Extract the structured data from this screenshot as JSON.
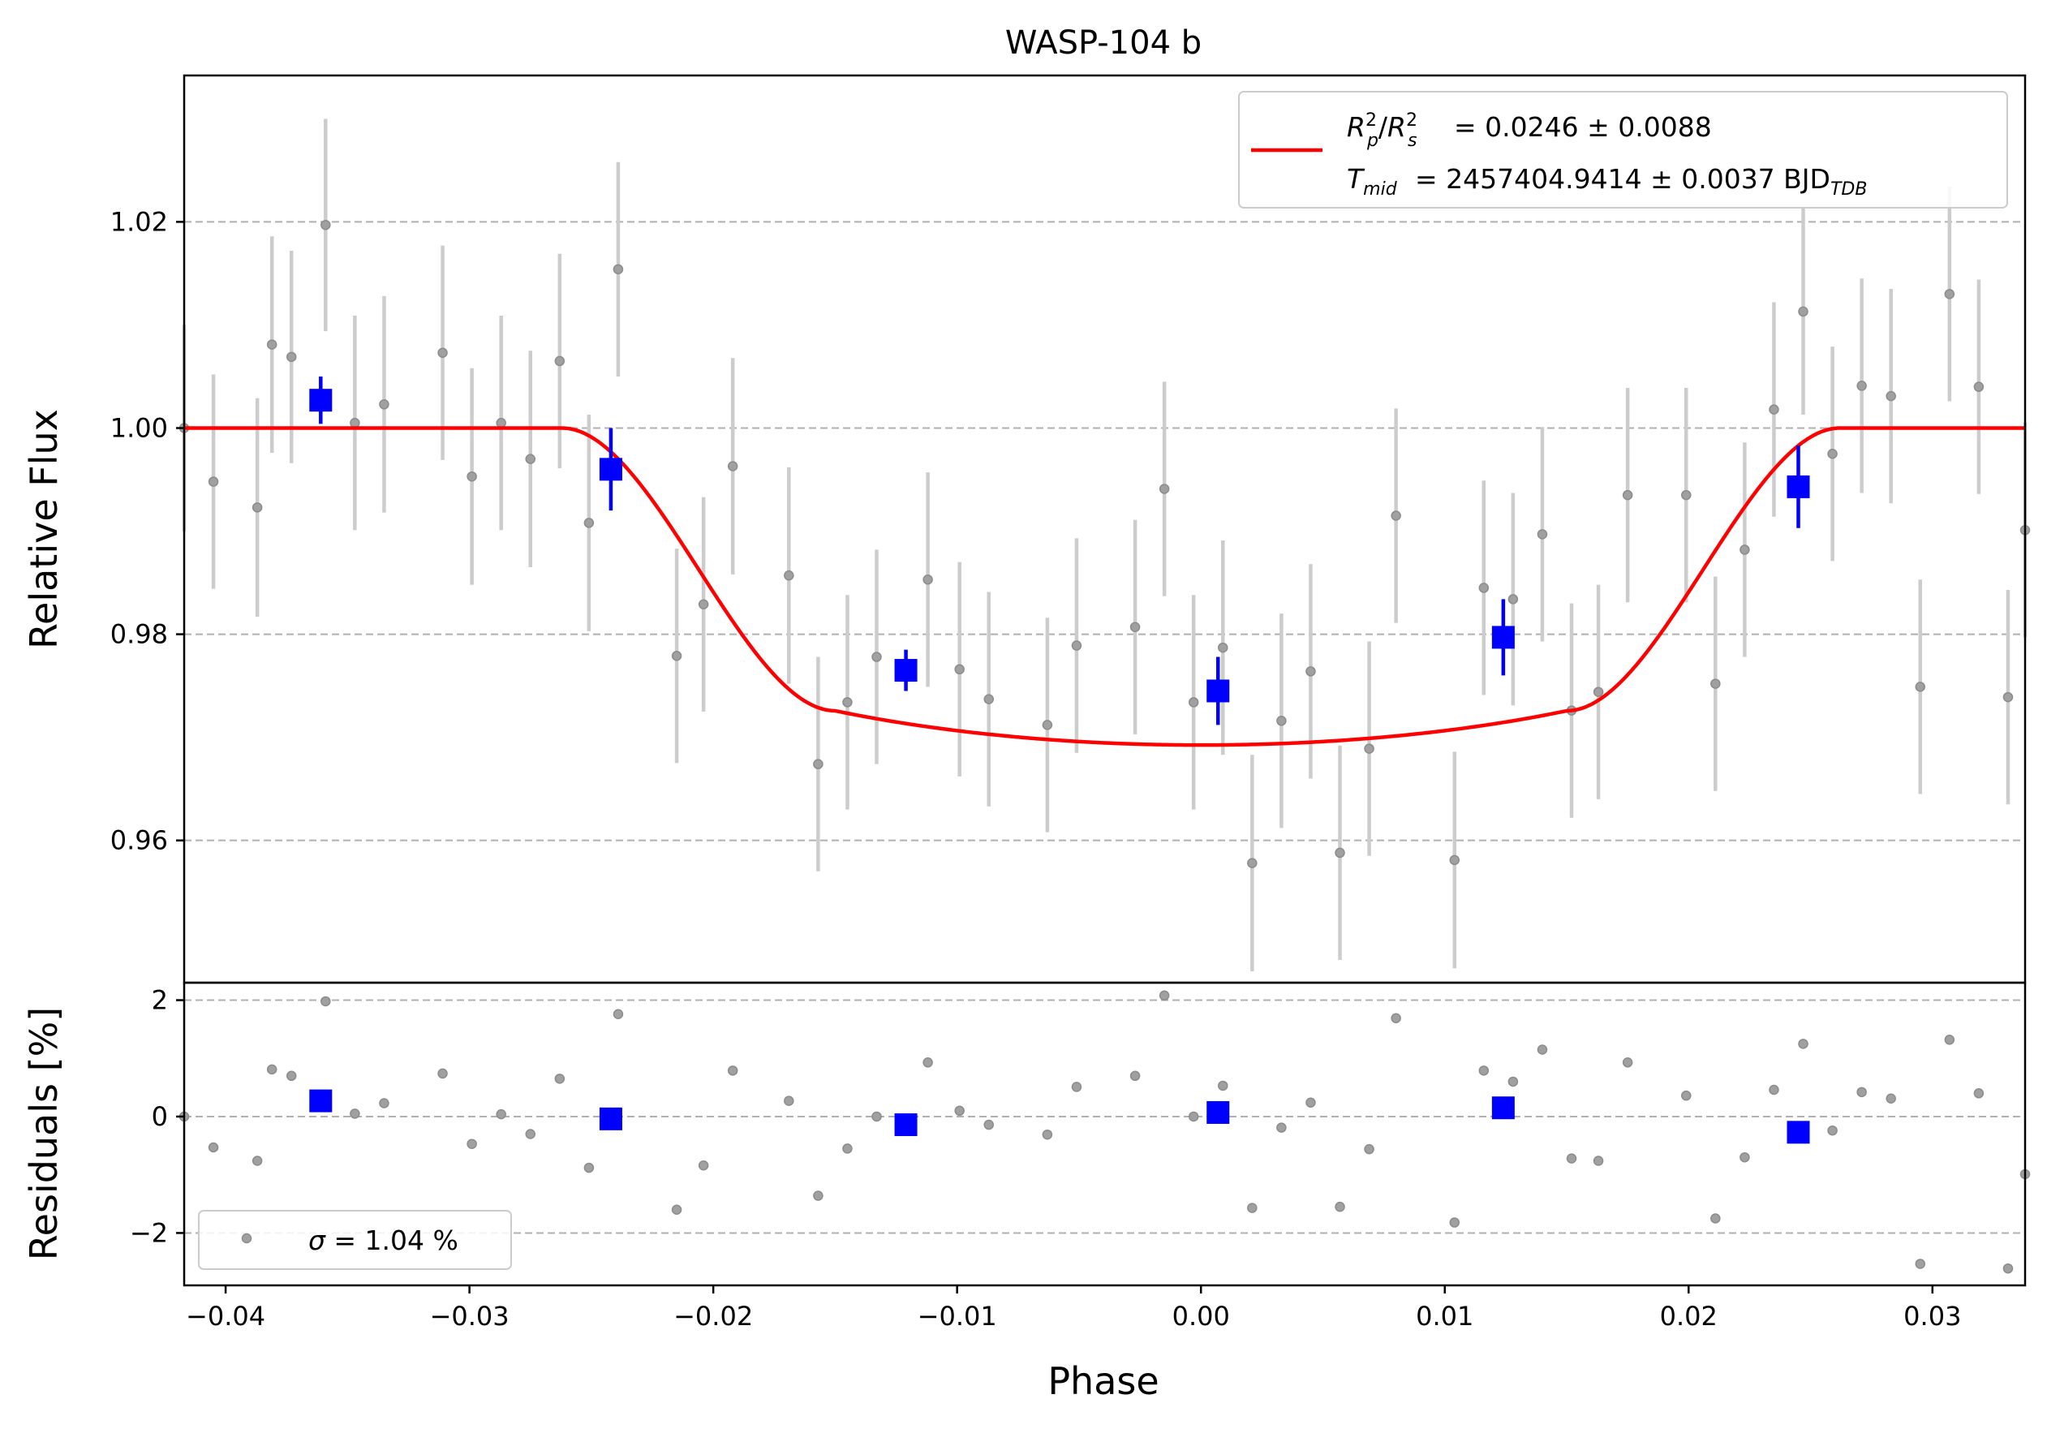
{
  "chart_data": [
    {
      "panel": "top",
      "type": "scatter",
      "title": "WASP-104 b",
      "xlabel": "",
      "ylabel": "Relative Flux",
      "xlim": [
        -0.0417,
        0.0338
      ],
      "ylim": [
        0.9462,
        1.0342
      ],
      "yticks": [
        0.96,
        0.98,
        1.0,
        1.02
      ],
      "yticklabels": [
        "0.96",
        "0.98",
        "1.00",
        "1.02"
      ],
      "grid": "horizontal dashed",
      "legend_position": "upper-right",
      "colors": {
        "raw": "#b0b0b0",
        "binned": "#0000ff",
        "model": "#ff0000"
      },
      "raw_points": [
        {
          "x": -0.0417,
          "y": 1.0,
          "err": 0.01
        },
        {
          "x": -0.0405,
          "y": 0.9948,
          "err": 0.0104
        },
        {
          "x": -0.0387,
          "y": 0.9923,
          "err": 0.0106
        },
        {
          "x": -0.0381,
          "y": 1.0081,
          "err": 0.0105
        },
        {
          "x": -0.0373,
          "y": 1.0069,
          "err": 0.0103
        },
        {
          "x": -0.0359,
          "y": 1.0197,
          "err": 0.0103
        },
        {
          "x": -0.0347,
          "y": 1.0005,
          "err": 0.0104
        },
        {
          "x": -0.0335,
          "y": 1.0023,
          "err": 0.0105
        },
        {
          "x": -0.0311,
          "y": 1.0073,
          "err": 0.0104
        },
        {
          "x": -0.0299,
          "y": 0.9953,
          "err": 0.0105
        },
        {
          "x": -0.0287,
          "y": 1.0005,
          "err": 0.0104
        },
        {
          "x": -0.0275,
          "y": 0.997,
          "err": 0.0105
        },
        {
          "x": -0.0263,
          "y": 1.0065,
          "err": 0.0104
        },
        {
          "x": -0.0251,
          "y": 0.9908,
          "err": 0.0105
        },
        {
          "x": -0.0239,
          "y": 1.0154,
          "err": 0.0104
        },
        {
          "x": -0.0215,
          "y": 0.9779,
          "err": 0.0104
        },
        {
          "x": -0.0204,
          "y": 0.9829,
          "err": 0.0104
        },
        {
          "x": -0.0192,
          "y": 0.9963,
          "err": 0.0105
        },
        {
          "x": -0.0169,
          "y": 0.9857,
          "err": 0.0105
        },
        {
          "x": -0.0157,
          "y": 0.9674,
          "err": 0.0104
        },
        {
          "x": -0.0145,
          "y": 0.9734,
          "err": 0.0104
        },
        {
          "x": -0.0133,
          "y": 0.9778,
          "err": 0.0104
        },
        {
          "x": -0.0112,
          "y": 0.9853,
          "err": 0.0104
        },
        {
          "x": -0.0099,
          "y": 0.9766,
          "err": 0.0104
        },
        {
          "x": -0.0087,
          "y": 0.9737,
          "err": 0.0104
        },
        {
          "x": -0.0063,
          "y": 0.9712,
          "err": 0.0104
        },
        {
          "x": -0.0051,
          "y": 0.9789,
          "err": 0.0104
        },
        {
          "x": -0.0027,
          "y": 0.9807,
          "err": 0.0104
        },
        {
          "x": -0.0015,
          "y": 0.9941,
          "err": 0.0104
        },
        {
          "x": -0.0003,
          "y": 0.9734,
          "err": 0.0104
        },
        {
          "x": 0.0009,
          "y": 0.9787,
          "err": 0.0104
        },
        {
          "x": 0.0021,
          "y": 0.9578,
          "err": 0.0105
        },
        {
          "x": 0.0033,
          "y": 0.9716,
          "err": 0.0104
        },
        {
          "x": 0.0045,
          "y": 0.9764,
          "err": 0.0104
        },
        {
          "x": 0.0057,
          "y": 0.9588,
          "err": 0.0104
        },
        {
          "x": 0.0069,
          "y": 0.9689,
          "err": 0.0104
        },
        {
          "x": 0.008,
          "y": 0.9915,
          "err": 0.0104
        },
        {
          "x": 0.0104,
          "y": 0.9581,
          "err": 0.0105
        },
        {
          "x": 0.0116,
          "y": 0.9845,
          "err": 0.0104
        },
        {
          "x": 0.0128,
          "y": 0.9834,
          "err": 0.0103
        },
        {
          "x": 0.014,
          "y": 0.9897,
          "err": 0.0104
        },
        {
          "x": 0.0152,
          "y": 0.9726,
          "err": 0.0104
        },
        {
          "x": 0.0163,
          "y": 0.9744,
          "err": 0.0104
        },
        {
          "x": 0.0175,
          "y": 0.9935,
          "err": 0.0104
        },
        {
          "x": 0.0199,
          "y": 0.9935,
          "err": 0.0104
        },
        {
          "x": 0.0211,
          "y": 0.9752,
          "err": 0.0104
        },
        {
          "x": 0.0223,
          "y": 0.9882,
          "err": 0.0104
        },
        {
          "x": 0.0235,
          "y": 1.0018,
          "err": 0.0104
        },
        {
          "x": 0.0247,
          "y": 1.0113,
          "err": 0.01
        },
        {
          "x": 0.0259,
          "y": 0.9975,
          "err": 0.0104
        },
        {
          "x": 0.0271,
          "y": 1.0041,
          "err": 0.0104
        },
        {
          "x": 0.0283,
          "y": 1.0031,
          "err": 0.0104
        },
        {
          "x": 0.0295,
          "y": 0.9749,
          "err": 0.0104
        },
        {
          "x": 0.0307,
          "y": 1.013,
          "err": 0.0104
        },
        {
          "x": 0.0319,
          "y": 1.004,
          "err": 0.0104
        },
        {
          "x": 0.0331,
          "y": 0.9739,
          "err": 0.0104
        },
        {
          "x": 0.0338,
          "y": 0.9901,
          "err": 0.0104
        }
      ],
      "binned_points": [
        {
          "x": -0.0361,
          "y": 1.0027,
          "err": 0.0023
        },
        {
          "x": -0.0242,
          "y": 0.996,
          "err": 0.004
        },
        {
          "x": -0.0121,
          "y": 0.9765,
          "err": 0.002
        },
        {
          "x": 0.0007,
          "y": 0.9745,
          "err": 0.0033
        },
        {
          "x": 0.0124,
          "y": 0.9797,
          "err": 0.0037
        },
        {
          "x": 0.0245,
          "y": 0.9943,
          "err": 0.004
        }
      ],
      "model_params": {
        "depth": 0.0246,
        "t14": 0.0524,
        "tflat": 0.03,
        "ld_u": 0.6
      },
      "legend": {
        "line1": "= 0.0246 ± 0.0088",
        "line2": "= 2457404.9414 ± 0.0037 BJD",
        "line2_sub": "TDB"
      }
    },
    {
      "panel": "bottom",
      "type": "scatter",
      "xlabel": "Phase",
      "ylabel": "Residuals [%]",
      "xlim": [
        -0.0417,
        0.0338
      ],
      "ylim": [
        -2.9,
        2.3
      ],
      "xticks": [
        -0.04,
        -0.03,
        -0.02,
        -0.01,
        0.0,
        0.01,
        0.02,
        0.03
      ],
      "xticklabels": [
        "−0.04",
        "−0.03",
        "−0.02",
        "−0.01",
        "0.00",
        "0.01",
        "0.02",
        "0.03"
      ],
      "yticks": [
        -2,
        0,
        2
      ],
      "yticklabels": [
        "−2",
        "0",
        "2"
      ],
      "grid": "horizontal dashed",
      "legend_position": "lower-left",
      "raw_residuals": [
        {
          "x": -0.0417,
          "y": 0.0
        },
        {
          "x": -0.0405,
          "y": -0.53
        },
        {
          "x": -0.0387,
          "y": -0.76
        },
        {
          "x": -0.0381,
          "y": 0.81
        },
        {
          "x": -0.0373,
          "y": 0.7
        },
        {
          "x": -0.0359,
          "y": 1.98
        },
        {
          "x": -0.0347,
          "y": 0.05
        },
        {
          "x": -0.0335,
          "y": 0.23
        },
        {
          "x": -0.0311,
          "y": 0.74
        },
        {
          "x": -0.0299,
          "y": -0.47
        },
        {
          "x": -0.0287,
          "y": 0.04
        },
        {
          "x": -0.0275,
          "y": -0.3
        },
        {
          "x": -0.0263,
          "y": 0.65
        },
        {
          "x": -0.0251,
          "y": -0.88
        },
        {
          "x": -0.0239,
          "y": 1.76
        },
        {
          "x": -0.0215,
          "y": -1.6
        },
        {
          "x": -0.0204,
          "y": -0.84
        },
        {
          "x": -0.0192,
          "y": 0.79
        },
        {
          "x": -0.0169,
          "y": 0.27
        },
        {
          "x": -0.0157,
          "y": -1.36
        },
        {
          "x": -0.0145,
          "y": -0.55
        },
        {
          "x": -0.0133,
          "y": 0.0
        },
        {
          "x": -0.0112,
          "y": 0.93
        },
        {
          "x": -0.0099,
          "y": 0.1
        },
        {
          "x": -0.0087,
          "y": -0.14
        },
        {
          "x": -0.0063,
          "y": -0.31
        },
        {
          "x": -0.0051,
          "y": 0.51
        },
        {
          "x": -0.0027,
          "y": 0.7
        },
        {
          "x": -0.0015,
          "y": 2.08
        },
        {
          "x": -0.0003,
          "y": 0.0
        },
        {
          "x": 0.0009,
          "y": 0.53
        },
        {
          "x": 0.0021,
          "y": -1.57
        },
        {
          "x": 0.0033,
          "y": -0.19
        },
        {
          "x": 0.0045,
          "y": 0.24
        },
        {
          "x": 0.0057,
          "y": -1.55
        },
        {
          "x": 0.0069,
          "y": -0.56
        },
        {
          "x": 0.008,
          "y": 1.69
        },
        {
          "x": 0.0104,
          "y": -1.82
        },
        {
          "x": 0.0116,
          "y": 0.79
        },
        {
          "x": 0.0128,
          "y": 0.6
        },
        {
          "x": 0.014,
          "y": 1.15
        },
        {
          "x": 0.0152,
          "y": -0.72
        },
        {
          "x": 0.0163,
          "y": -0.76
        },
        {
          "x": 0.0175,
          "y": 0.93
        },
        {
          "x": 0.0199,
          "y": 0.36
        },
        {
          "x": 0.0211,
          "y": -1.75
        },
        {
          "x": 0.0223,
          "y": -0.7
        },
        {
          "x": 0.0235,
          "y": 0.46
        },
        {
          "x": 0.0247,
          "y": 1.25
        },
        {
          "x": 0.0259,
          "y": -0.24
        },
        {
          "x": 0.0271,
          "y": 0.42
        },
        {
          "x": 0.0283,
          "y": 0.31
        },
        {
          "x": 0.0295,
          "y": -2.53
        },
        {
          "x": 0.0307,
          "y": 1.32
        },
        {
          "x": 0.0319,
          "y": 0.4
        },
        {
          "x": 0.0331,
          "y": -2.61
        },
        {
          "x": 0.0338,
          "y": -0.99
        }
      ],
      "binned_residuals": [
        {
          "x": -0.0361,
          "y": 0.27
        },
        {
          "x": -0.0242,
          "y": -0.04
        },
        {
          "x": -0.0121,
          "y": -0.14
        },
        {
          "x": 0.0007,
          "y": 0.07
        },
        {
          "x": 0.0124,
          "y": 0.15
        },
        {
          "x": 0.0245,
          "y": -0.27
        }
      ],
      "legend": {
        "label": "= 1.04 %"
      }
    }
  ]
}
